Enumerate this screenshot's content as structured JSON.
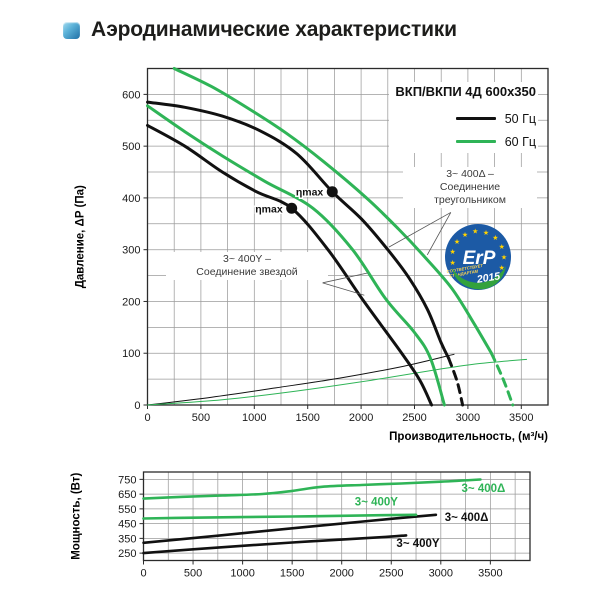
{
  "page": {
    "title": "Аэродинамические характеристики"
  },
  "colors": {
    "black": "#111111",
    "green": "#2fb457",
    "grid": "#9b9b9b",
    "badge_blue": "#1c5aa5",
    "badge_green": "#33a23d",
    "star_yellow": "#ffd200",
    "accent_blue": "#2e86b5"
  },
  "legend": {
    "title": "ВКП/ВКПИ 4Д 600x350",
    "items": [
      {
        "label": "50 Гц",
        "color": "#111111"
      },
      {
        "label": "60 Гц",
        "color": "#2fb457"
      }
    ]
  },
  "annotations": {
    "delta": {
      "lines": [
        "3~ 400Δ –",
        "Соединение",
        "треугольником"
      ]
    },
    "star": {
      "lines": [
        "3~ 400Y –",
        "Соединение звездой"
      ]
    }
  },
  "badges": {
    "erp": {
      "name": "ErP",
      "line1": "СООТВЕТСТВУЕТ",
      "line2": "СТАНДАРТАМ",
      "year": "2015",
      "star": "★"
    }
  },
  "chart_data": [
    {
      "id": "pressure",
      "type": "line",
      "title": "ВКП/ВКПИ 4Д 600x350",
      "xlabel": "Производительность, (м³/ч)",
      "ylabel": "Давление, ΔP (Па)",
      "xlim": [
        0,
        3750
      ],
      "ylim": [
        0,
        650
      ],
      "xticks": [
        0,
        500,
        1000,
        1500,
        2000,
        2500,
        3000,
        3500
      ],
      "yticks": [
        0,
        100,
        200,
        300,
        400,
        500,
        600
      ],
      "grid": {
        "x_start": 250,
        "x_step": 250,
        "y_start": 50,
        "y_step": 50
      },
      "series": [
        {
          "name": "dynamic-pressure-50hz",
          "color": "#111111",
          "width": 1,
          "dash": false,
          "points": [
            [
              0,
              0
            ],
            [
              600,
              15
            ],
            [
              1200,
              33
            ],
            [
              1800,
              52
            ],
            [
              2400,
              75
            ],
            [
              2870,
              98
            ]
          ]
        },
        {
          "name": "dynamic-pressure-60hz",
          "color": "#2fb457",
          "width": 1,
          "dash": false,
          "points": [
            [
              0,
              0
            ],
            [
              700,
              10
            ],
            [
              1400,
              27
            ],
            [
              2100,
              48
            ],
            [
              2700,
              68
            ],
            [
              3100,
              80
            ],
            [
              3550,
              88
            ]
          ]
        },
        {
          "name": "50hz-400y",
          "color": "#111111",
          "width": 3,
          "dash": false,
          "points": [
            [
              0,
              540
            ],
            [
              350,
              500
            ],
            [
              700,
              450
            ],
            [
              1020,
              412
            ],
            [
              1350,
              380
            ],
            [
              1690,
              300
            ],
            [
              2020,
              202
            ],
            [
              2380,
              100
            ],
            [
              2550,
              48
            ],
            [
              2660,
              0
            ]
          ]
        },
        {
          "name": "50hz-400delta",
          "color": "#111111",
          "width": 3,
          "dash": false,
          "points": [
            [
              0,
              585
            ],
            [
              350,
              575
            ],
            [
              700,
              558
            ],
            [
              1050,
              530
            ],
            [
              1400,
              485
            ],
            [
              1730,
              412
            ],
            [
              2000,
              360
            ],
            [
              2250,
              300
            ],
            [
              2450,
              245
            ],
            [
              2620,
              185
            ],
            [
              2750,
              120
            ],
            [
              2820,
              90
            ]
          ]
        },
        {
          "name": "50hz-400delta-ext",
          "color": "#111111",
          "width": 3,
          "dash": true,
          "points": [
            [
              2820,
              90
            ],
            [
              2900,
              45
            ],
            [
              2950,
              0
            ]
          ]
        },
        {
          "name": "60hz-400y",
          "color": "#2fb457",
          "width": 3,
          "dash": false,
          "points": [
            [
              0,
              578
            ],
            [
              350,
              528
            ],
            [
              710,
              480
            ],
            [
              1100,
              432
            ],
            [
              1550,
              380
            ],
            [
              1920,
              300
            ],
            [
              2230,
              205
            ],
            [
              2500,
              140
            ],
            [
              2650,
              90
            ],
            [
              2780,
              0
            ]
          ]
        },
        {
          "name": "60hz-400delta",
          "color": "#2fb457",
          "width": 3,
          "dash": false,
          "points": [
            [
              250,
              650
            ],
            [
              600,
              615
            ],
            [
              950,
              572
            ],
            [
              1300,
              525
            ],
            [
              1650,
              470
            ],
            [
              2050,
              400
            ],
            [
              2350,
              340
            ],
            [
              2600,
              285
            ],
            [
              2850,
              225
            ],
            [
              3050,
              160
            ],
            [
              3220,
              100
            ]
          ]
        },
        {
          "name": "60hz-400delta-ext",
          "color": "#2fb457",
          "width": 3,
          "dash": true,
          "points": [
            [
              3220,
              100
            ],
            [
              3330,
              50
            ],
            [
              3420,
              0
            ]
          ]
        }
      ],
      "markers": [
        {
          "x": 1350,
          "y": 380,
          "label": "ηmax"
        },
        {
          "x": 1730,
          "y": 412,
          "label": "ηmax"
        }
      ],
      "leader_lines": [
        {
          "from": [
            2840,
            372
          ],
          "to": [
            2260,
            305
          ]
        },
        {
          "from": [
            2840,
            372
          ],
          "to": [
            2620,
            290
          ]
        },
        {
          "from": [
            1640,
            236
          ],
          "to": [
            2060,
            255
          ]
        },
        {
          "from": [
            1640,
            236
          ],
          "to": [
            2030,
            212
          ]
        }
      ]
    },
    {
      "id": "power",
      "type": "line",
      "xlabel": "",
      "ylabel": "Мощность, (Вт)",
      "xlim": [
        0,
        3900
      ],
      "ylim": [
        200,
        800
      ],
      "xticks": [
        0,
        500,
        1000,
        1500,
        2000,
        2500,
        3000,
        3500
      ],
      "yticks": [
        250,
        350,
        450,
        550,
        650,
        750
      ],
      "grid": {
        "x_start": 250,
        "x_step": 250,
        "y_start": 250,
        "y_step": 100
      },
      "series": [
        {
          "name": "power-50hz-400y",
          "color": "#111111",
          "width": 2.6,
          "dash": false,
          "points": [
            [
              0,
              250
            ],
            [
              500,
              276
            ],
            [
              1000,
              300
            ],
            [
              1500,
              322
            ],
            [
              2000,
              342
            ],
            [
              2400,
              358
            ],
            [
              2650,
              370
            ]
          ]
        },
        {
          "name": "power-50hz-400delta",
          "color": "#111111",
          "width": 2.6,
          "dash": false,
          "points": [
            [
              0,
              320
            ],
            [
              500,
              352
            ],
            [
              1000,
              385
            ],
            [
              1500,
              418
            ],
            [
              2000,
              450
            ],
            [
              2500,
              483
            ],
            [
              2950,
              510
            ]
          ]
        },
        {
          "name": "power-60hz-400y",
          "color": "#2fb457",
          "width": 2.6,
          "dash": false,
          "points": [
            [
              0,
              485
            ],
            [
              500,
              490
            ],
            [
              1000,
              494
            ],
            [
              1500,
              498
            ],
            [
              2000,
              503
            ],
            [
              2400,
              507
            ],
            [
              2750,
              510
            ]
          ]
        },
        {
          "name": "power-60hz-400delta",
          "color": "#2fb457",
          "width": 2.6,
          "dash": false,
          "points": [
            [
              0,
              620
            ],
            [
              400,
              632
            ],
            [
              800,
              641
            ],
            [
              1200,
              651
            ],
            [
              1500,
              672
            ],
            [
              1800,
              700
            ],
            [
              2200,
              712
            ],
            [
              2600,
              722
            ],
            [
              3000,
              734
            ],
            [
              3400,
              749
            ]
          ]
        }
      ],
      "curve_labels": [
        {
          "text": "3~ 400Δ",
          "color": "#2fb457",
          "x": 3430,
          "y": 665
        },
        {
          "text": "3~ 400Y",
          "color": "#2fb457",
          "x": 2350,
          "y": 573
        },
        {
          "text": "3~ 400Δ",
          "color": "#111111",
          "x": 3260,
          "y": 468
        },
        {
          "text": "3~ 400Y",
          "color": "#111111",
          "x": 2770,
          "y": 292
        }
      ]
    }
  ]
}
